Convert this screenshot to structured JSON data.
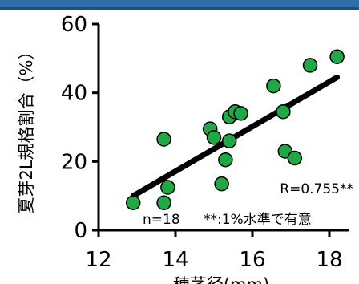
{
  "chart_data": {
    "type": "scatter",
    "title": "",
    "xlabel": "穂茎径(mm)",
    "ylabel": "夏芽2L規格割合（%）",
    "xlim": [
      12,
      18.5
    ],
    "ylim": [
      0,
      60
    ],
    "x_ticks": [
      "12",
      "14",
      "16",
      "18"
    ],
    "y_ticks": [
      "0",
      "20",
      "40",
      "60"
    ],
    "grid": false,
    "points": [
      {
        "x": 12.9,
        "y": 8
      },
      {
        "x": 13.7,
        "y": 8
      },
      {
        "x": 13.8,
        "y": 12.5
      },
      {
        "x": 13.7,
        "y": 26.5
      },
      {
        "x": 14.9,
        "y": 29.5
      },
      {
        "x": 15.0,
        "y": 27
      },
      {
        "x": 15.2,
        "y": 13.5
      },
      {
        "x": 15.3,
        "y": 20.5
      },
      {
        "x": 15.4,
        "y": 26
      },
      {
        "x": 15.4,
        "y": 33
      },
      {
        "x": 15.55,
        "y": 34.5
      },
      {
        "x": 15.7,
        "y": 34
      },
      {
        "x": 16.55,
        "y": 42
      },
      {
        "x": 16.8,
        "y": 34.5
      },
      {
        "x": 16.85,
        "y": 23
      },
      {
        "x": 17.1,
        "y": 21
      },
      {
        "x": 17.5,
        "y": 48
      },
      {
        "x": 18.2,
        "y": 50.5
      }
    ],
    "trendline": {
      "x": [
        12.9,
        18.2
      ],
      "y": [
        10,
        44.5
      ]
    },
    "annotations": {
      "r": "R=0.755**",
      "n": "n=18",
      "significance": "**:1%水準で有意"
    },
    "colors": {
      "point_fill": "#22a745",
      "point_stroke": "#000000",
      "trendline": "#000000",
      "header_bar": "#2e6fa8"
    }
  }
}
